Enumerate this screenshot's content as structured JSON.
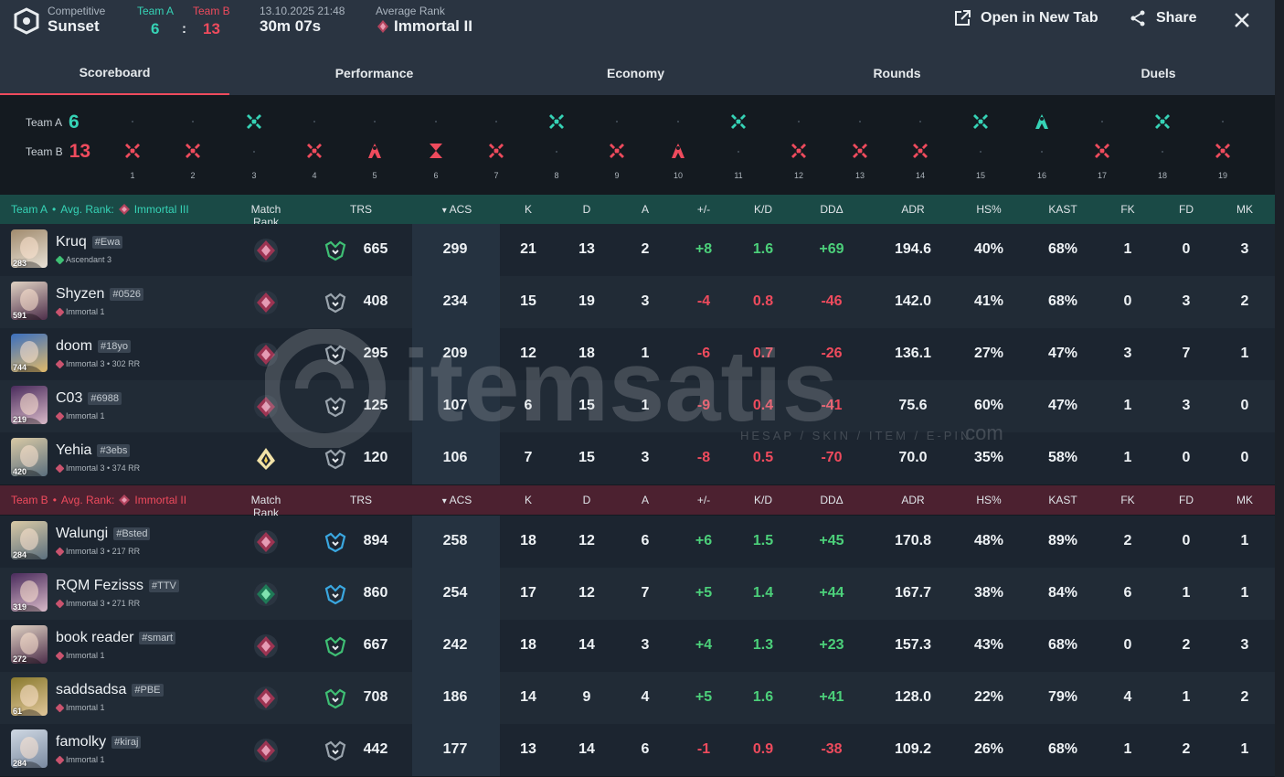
{
  "header": {
    "mode": "Competitive",
    "map": "Sunset",
    "team_a_label": "Team A",
    "team_b_label": "Team B",
    "team_a_score": "6",
    "team_b_score": "13",
    "score_separator": ":",
    "date": "13.10.2025 21:48",
    "duration": "30m 07s",
    "avg_rank_label": "Average Rank",
    "avg_rank": "Immortal II",
    "open_new_tab": "Open in New Tab",
    "share": "Share"
  },
  "tabs": [
    "Scoreboard",
    "Performance",
    "Economy",
    "Rounds",
    "Duels"
  ],
  "active_tab": 0,
  "timeline": {
    "team_a_label": "Team A",
    "team_a_score": "6",
    "team_b_label": "Team B",
    "team_b_score": "13",
    "rounds": [
      {
        "n": "1",
        "winner": "B",
        "type": "elim"
      },
      {
        "n": "2",
        "winner": "B",
        "type": "elim"
      },
      {
        "n": "3",
        "winner": "A",
        "type": "elim"
      },
      {
        "n": "4",
        "winner": "B",
        "type": "elim"
      },
      {
        "n": "5",
        "winner": "B",
        "type": "defuse"
      },
      {
        "n": "6",
        "winner": "B",
        "type": "time"
      },
      {
        "n": "7",
        "winner": "B",
        "type": "elim"
      },
      {
        "n": "8",
        "winner": "A",
        "type": "elim"
      },
      {
        "n": "9",
        "winner": "B",
        "type": "elim"
      },
      {
        "n": "10",
        "winner": "B",
        "type": "defuse"
      },
      {
        "n": "11",
        "winner": "A",
        "type": "elim"
      },
      {
        "n": "12",
        "winner": "B",
        "type": "elim"
      },
      {
        "n": "13",
        "winner": "B",
        "type": "elim"
      },
      {
        "n": "14",
        "winner": "B",
        "type": "elim"
      },
      {
        "n": "15",
        "winner": "A",
        "type": "elim"
      },
      {
        "n": "16",
        "winner": "A",
        "type": "defuse"
      },
      {
        "n": "17",
        "winner": "B",
        "type": "elim"
      },
      {
        "n": "18",
        "winner": "A",
        "type": "elim"
      },
      {
        "n": "19",
        "winner": "B",
        "type": "elim"
      }
    ]
  },
  "columns": {
    "match_rank": "Match Rank",
    "trs": "TRS",
    "acs": "ACS",
    "k": "K",
    "d": "D",
    "a": "A",
    "pm": "+/-",
    "kd": "K/D",
    "dda": "DDΔ",
    "adr": "ADR",
    "hs": "HS%",
    "kast": "KAST",
    "fk": "FK",
    "fd": "FD",
    "mk": "MK"
  },
  "team_a": {
    "name": "Team A",
    "bullet": "•",
    "avg_rank_label": "Avg. Rank:",
    "avg_rank": "Immortal III",
    "color": "#36d3b6",
    "players": [
      {
        "level": "283",
        "name": "Kruq",
        "tag": "#Ewa",
        "rank": "Ascendant 3",
        "rank_color": "#3fbf74",
        "match_rank": "immortal",
        "trs_color": "#3fbf74",
        "trs": "665",
        "acs": "299",
        "k": "21",
        "d": "13",
        "a": "2",
        "pm": "+8",
        "kd": "1.6",
        "dda": "+69",
        "adr": "194.6",
        "hs": "40%",
        "kast": "68%",
        "fk": "1",
        "fd": "0",
        "mk": "3",
        "sign": "pos",
        "av": [
          "#a18b6e",
          "#e8e1d6"
        ]
      },
      {
        "level": "591",
        "name": "Shyzen",
        "tag": "#0526",
        "rank": "Immortal 1",
        "rank_color": "#c9536e",
        "match_rank": "immortal",
        "trs_color": "#9aa4ad",
        "trs": "408",
        "acs": "234",
        "k": "15",
        "d": "19",
        "a": "3",
        "pm": "-4",
        "kd": "0.8",
        "dda": "-46",
        "adr": "142.0",
        "hs": "41%",
        "kast": "68%",
        "fk": "0",
        "fd": "3",
        "mk": "2",
        "sign": "neg",
        "av": [
          "#e0d2c3",
          "#4d2e4a"
        ]
      },
      {
        "level": "744",
        "name": "doom",
        "tag": "#18yo",
        "rank": "Immortal 3 • 302 RR",
        "rank_color": "#c9536e",
        "match_rank": "immortal",
        "trs_color": "#9aa4ad",
        "trs": "295",
        "acs": "209",
        "k": "12",
        "d": "18",
        "a": "1",
        "pm": "-6",
        "kd": "0.7",
        "dda": "-26",
        "adr": "136.1",
        "hs": "27%",
        "kast": "47%",
        "fk": "3",
        "fd": "7",
        "mk": "1",
        "sign": "neg",
        "av": [
          "#3a6fbf",
          "#e0b96a"
        ]
      },
      {
        "level": "219",
        "name": "C03",
        "tag": "#6988",
        "rank": "Immortal 1",
        "rank_color": "#c9536e",
        "match_rank": "immortal",
        "trs_color": "#9aa4ad",
        "trs": "125",
        "acs": "107",
        "k": "6",
        "d": "15",
        "a": "1",
        "pm": "-9",
        "kd": "0.4",
        "dda": "-41",
        "adr": "75.6",
        "hs": "60%",
        "kast": "47%",
        "fk": "1",
        "fd": "3",
        "mk": "0",
        "sign": "neg",
        "av": [
          "#4a2b5c",
          "#d8b9c8"
        ]
      },
      {
        "level": "420",
        "name": "Yehia",
        "tag": "#3ebs",
        "rank": "Immortal 3 • 374 RR",
        "rank_color": "#c9536e",
        "match_rank": "radiant",
        "trs_color": "#9aa4ad",
        "trs": "120",
        "acs": "106",
        "k": "7",
        "d": "15",
        "a": "3",
        "pm": "-8",
        "kd": "0.5",
        "dda": "-70",
        "adr": "70.0",
        "hs": "35%",
        "kast": "58%",
        "fk": "1",
        "fd": "0",
        "mk": "0",
        "sign": "neg",
        "av": [
          "#d9c9a5",
          "#5b6f7e"
        ]
      }
    ]
  },
  "team_b": {
    "name": "Team B",
    "bullet": "•",
    "avg_rank_label": "Avg. Rank:",
    "avg_rank": "Immortal II",
    "color": "#ef4b5d",
    "players": [
      {
        "level": "284",
        "name": "Walungi",
        "tag": "#Bsted",
        "rank": "Immortal 3 • 217 RR",
        "rank_color": "#c9536e",
        "match_rank": "immortal",
        "trs_color": "#3aa7e0",
        "trs": "894",
        "acs": "258",
        "k": "18",
        "d": "12",
        "a": "6",
        "pm": "+6",
        "kd": "1.5",
        "dda": "+45",
        "adr": "170.8",
        "hs": "48%",
        "kast": "89%",
        "fk": "2",
        "fd": "0",
        "mk": "1",
        "sign": "pos",
        "av": [
          "#d9c9a5",
          "#5b6f7e"
        ]
      },
      {
        "level": "319",
        "name": "RQM Fezisss",
        "tag": "#TTV",
        "rank": "Immortal 3 • 271 RR",
        "rank_color": "#c9536e",
        "match_rank": "ascendant",
        "trs_color": "#3aa7e0",
        "trs": "860",
        "acs": "254",
        "k": "17",
        "d": "12",
        "a": "7",
        "pm": "+5",
        "kd": "1.4",
        "dda": "+44",
        "adr": "167.7",
        "hs": "38%",
        "kast": "84%",
        "fk": "6",
        "fd": "1",
        "mk": "1",
        "sign": "pos",
        "av": [
          "#4a2b5c",
          "#d8b9c8"
        ]
      },
      {
        "level": "272",
        "name": "book reader",
        "tag": "#smart",
        "rank": "Immortal 1",
        "rank_color": "#c9536e",
        "match_rank": "immortal",
        "trs_color": "#3fbf74",
        "trs": "667",
        "acs": "242",
        "k": "18",
        "d": "14",
        "a": "3",
        "pm": "+4",
        "kd": "1.3",
        "dda": "+23",
        "adr": "157.3",
        "hs": "43%",
        "kast": "68%",
        "fk": "0",
        "fd": "2",
        "mk": "3",
        "sign": "pos",
        "av": [
          "#e0d2c3",
          "#4d2e4a"
        ]
      },
      {
        "level": "61",
        "name": "saddsadsa",
        "tag": "#PBE",
        "rank": "Immortal 1",
        "rank_color": "#c9536e",
        "match_rank": "immortal",
        "trs_color": "#3fbf74",
        "trs": "708",
        "acs": "186",
        "k": "14",
        "d": "9",
        "a": "4",
        "pm": "+5",
        "kd": "1.6",
        "dda": "+41",
        "adr": "128.0",
        "hs": "22%",
        "kast": "79%",
        "fk": "4",
        "fd": "1",
        "mk": "2",
        "sign": "pos",
        "av": [
          "#8a7a2e",
          "#e0c69a"
        ]
      },
      {
        "level": "284",
        "name": "famolky",
        "tag": "#kiraj",
        "rank": "Immortal 1",
        "rank_color": "#c9536e",
        "match_rank": "immortal",
        "trs_color": "#9aa4ad",
        "trs": "442",
        "acs": "177",
        "k": "13",
        "d": "14",
        "a": "6",
        "pm": "-1",
        "kd": "0.9",
        "dda": "-38",
        "adr": "109.2",
        "hs": "26%",
        "kast": "68%",
        "fk": "1",
        "fd": "2",
        "mk": "1",
        "sign": "neg",
        "av": [
          "#cfd8e3",
          "#7a8aa0"
        ]
      }
    ]
  },
  "watermark": {
    "brand": "itemsatis",
    "sub": "HESAP / SKIN / ITEM / E-PIN",
    "domain": ".com"
  },
  "colors": {
    "team_a": "#36d3b6",
    "team_b": "#ef4b5d",
    "positive": "#4cd07a",
    "negative": "#ef4b5d"
  }
}
